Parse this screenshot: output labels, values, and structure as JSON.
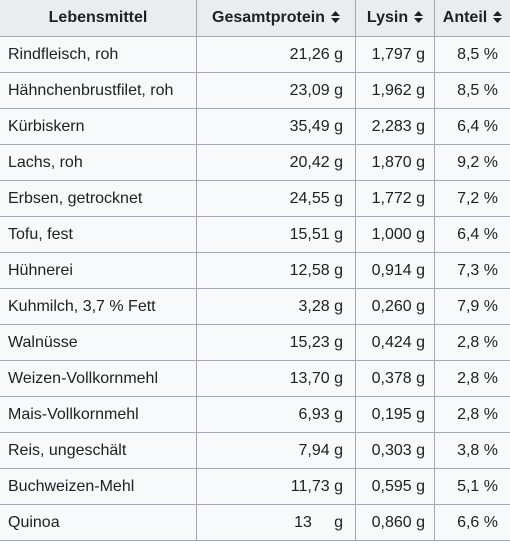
{
  "columns": [
    {
      "label": "Lebensmittel",
      "sortable": false
    },
    {
      "label": "Gesamtprotein",
      "sortable": true
    },
    {
      "label": "Lysin",
      "sortable": true
    },
    {
      "label": "Anteil",
      "sortable": true
    }
  ],
  "rows": [
    {
      "name": "Rindfleisch, roh",
      "protein": "21,26 g",
      "lysin": "1,797 g",
      "anteil": "8,5 %"
    },
    {
      "name": "Hähnchenbrustfilet, roh",
      "protein": "23,09 g",
      "lysin": "1,962 g",
      "anteil": "8,5 %"
    },
    {
      "name": "Kürbiskern",
      "protein": "35,49 g",
      "lysin": "2,283 g",
      "anteil": "6,4 %"
    },
    {
      "name": "Lachs, roh",
      "protein": "20,42 g",
      "lysin": "1,870 g",
      "anteil": "9,2 %"
    },
    {
      "name": "Erbsen, getrocknet",
      "protein": "24,55 g",
      "lysin": "1,772 g",
      "anteil": "7,2 %"
    },
    {
      "name": "Tofu, fest",
      "protein": "15,51 g",
      "lysin": "1,000 g",
      "anteil": "6,4 %"
    },
    {
      "name": "Hühnerei",
      "protein": "12,58 g",
      "lysin": "0,914 g",
      "anteil": "7,3 %"
    },
    {
      "name": "Kuhmilch, 3,7 % Fett",
      "protein": "3,28 g",
      "lysin": "0,260 g",
      "anteil": "7,9 %"
    },
    {
      "name": "Walnüsse",
      "protein": "15,23 g",
      "lysin": "0,424 g",
      "anteil": "2,8 %"
    },
    {
      "name": "Weizen-Vollkornmehl",
      "protein": "13,70 g",
      "lysin": "0,378 g",
      "anteil": "2,8 %"
    },
    {
      "name": "Mais-Vollkornmehl",
      "protein": "6,93 g",
      "lysin": "0,195 g",
      "anteil": "2,8 %"
    },
    {
      "name": "Reis, ungeschält",
      "protein": "7,94 g",
      "lysin": "0,303 g",
      "anteil": "3,8 %"
    },
    {
      "name": "Buchweizen-Mehl",
      "protein": "11,73 g",
      "lysin": "0,595 g",
      "anteil": "5,1 %"
    },
    {
      "name": "Quinoa",
      "protein": "13     g",
      "lysin": "0,860 g",
      "anteil": "6,6 %"
    }
  ],
  "icons": {
    "sort": "sort-updown-icon"
  },
  "colors": {
    "header_bg": "#eaecf0",
    "cell_bg": "#f8f9fa",
    "border": "#a2a9b1",
    "text": "#202122"
  }
}
